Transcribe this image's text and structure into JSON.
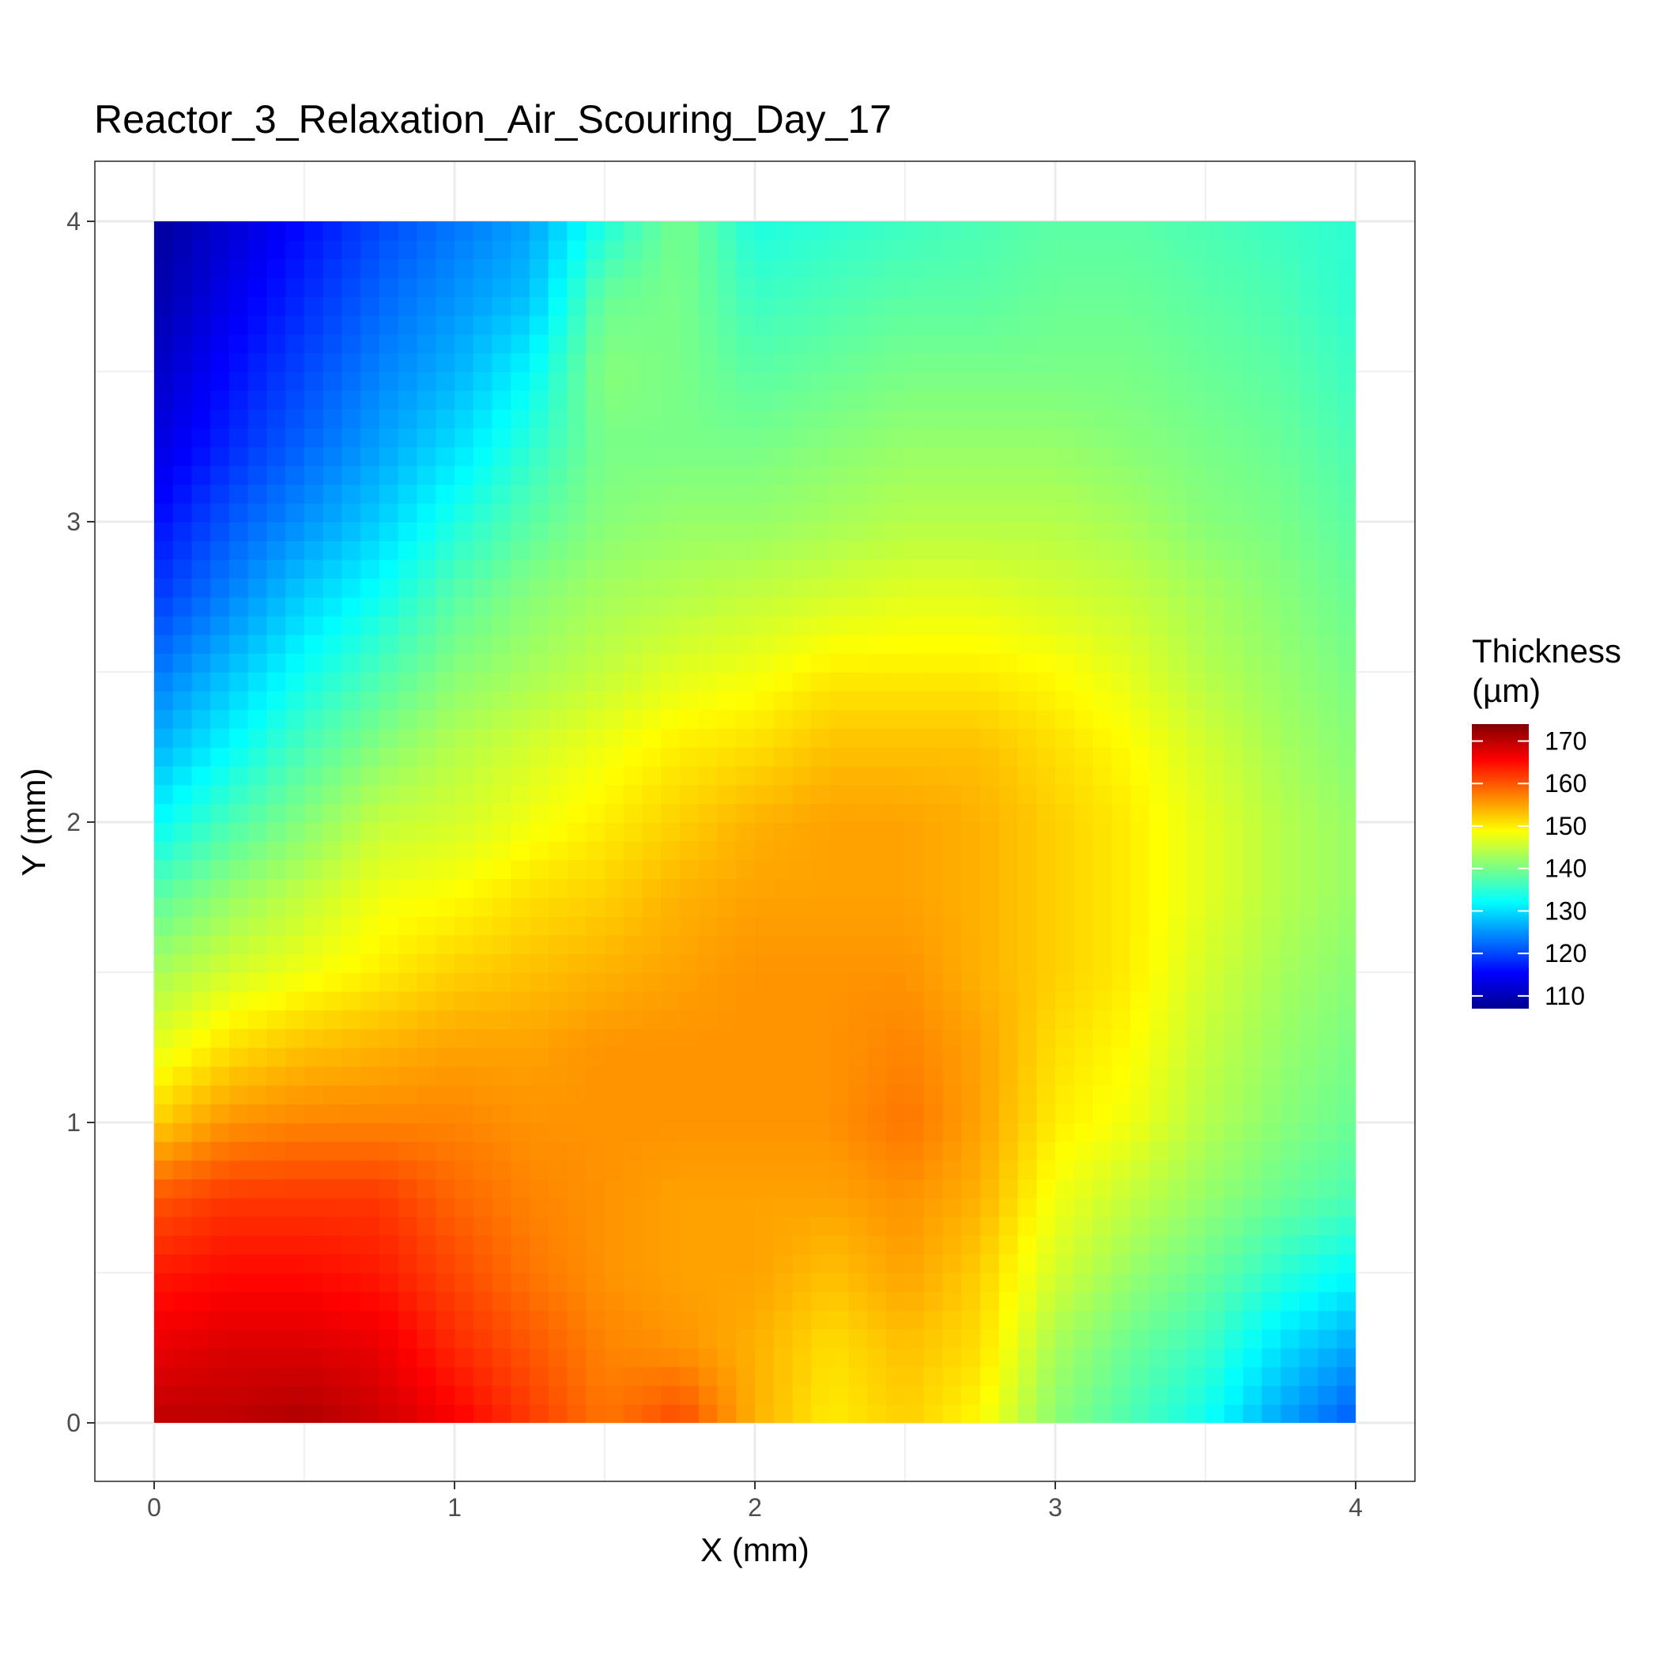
{
  "chart_data": {
    "type": "heatmap",
    "title": "Reactor_3_Relaxation_Air_Scouring_Day_17",
    "xlabel": "X (mm)",
    "ylabel": "Y (mm)",
    "xlim": [
      0,
      4
    ],
    "ylim": [
      0,
      4
    ],
    "x_ticks": [
      0,
      1,
      2,
      3,
      4
    ],
    "y_ticks": [
      0,
      1,
      2,
      3,
      4
    ],
    "grid": true,
    "legend": {
      "title_line1": "Thickness",
      "title_line2": "(µm)",
      "placement": "right",
      "ticks": [
        110,
        120,
        130,
        140,
        150,
        160,
        170
      ],
      "range": [
        107,
        174
      ],
      "colors": [
        "#00008F",
        "#0000FF",
        "#0080FF",
        "#00FFFF",
        "#80FF80",
        "#FFFF00",
        "#FF8000",
        "#FF0000",
        "#800000"
      ]
    },
    "grid_x": [
      0.0,
      0.25,
      0.5,
      0.75,
      1.0,
      1.25,
      1.5,
      1.75,
      2.0,
      2.25,
      2.5,
      2.75,
      3.0,
      3.25,
      3.5,
      3.75,
      4.0
    ],
    "grid_y": [
      0.0,
      0.25,
      0.5,
      0.75,
      1.0,
      1.25,
      1.5,
      1.75,
      2.0,
      2.25,
      2.5,
      2.75,
      3.0,
      3.25,
      3.5,
      3.75,
      4.0
    ],
    "z": [
      [
        170,
        170,
        171,
        169,
        166,
        162,
        158,
        161,
        154,
        150,
        152,
        149,
        141,
        137,
        133,
        126,
        121
      ],
      [
        167,
        168,
        168,
        167,
        163,
        160,
        157,
        156,
        154,
        151,
        153,
        151,
        143,
        139,
        136,
        130,
        126
      ],
      [
        164,
        165,
        165,
        164,
        161,
        158,
        156,
        155,
        155,
        153,
        155,
        152,
        146,
        142,
        139,
        135,
        132
      ],
      [
        160,
        162,
        162,
        162,
        159,
        157,
        156,
        155,
        155,
        155,
        156,
        154,
        148,
        145,
        142,
        139,
        137
      ],
      [
        152,
        156,
        157,
        157,
        157,
        156,
        156,
        156,
        156,
        156,
        158,
        155,
        150,
        148,
        144,
        141,
        139
      ],
      [
        147,
        151,
        153,
        154,
        155,
        155,
        156,
        156,
        156,
        156,
        157,
        155,
        151,
        149,
        145,
        142,
        140
      ],
      [
        143,
        146,
        148,
        150,
        152,
        153,
        154,
        155,
        156,
        156,
        156,
        154,
        152,
        150,
        146,
        143,
        141
      ],
      [
        138,
        142,
        145,
        148,
        149,
        151,
        152,
        154,
        155,
        155,
        155,
        154,
        152,
        150,
        147,
        144,
        142
      ],
      [
        132,
        137,
        141,
        145,
        146,
        148,
        150,
        152,
        154,
        155,
        155,
        154,
        152,
        150,
        147,
        144,
        142
      ],
      [
        127,
        132,
        137,
        141,
        144,
        146,
        148,
        150,
        151,
        153,
        153,
        153,
        151,
        149,
        146,
        143,
        141
      ],
      [
        123,
        128,
        133,
        137,
        141,
        143,
        145,
        147,
        148,
        150,
        150,
        150,
        149,
        147,
        144,
        142,
        140
      ],
      [
        119,
        124,
        129,
        133,
        138,
        141,
        143,
        144,
        145,
        146,
        147,
        147,
        146,
        145,
        143,
        141,
        139
      ],
      [
        116,
        121,
        125,
        129,
        134,
        138,
        141,
        142,
        142,
        143,
        144,
        144,
        144,
        143,
        141,
        140,
        138
      ],
      [
        113,
        118,
        122,
        126,
        130,
        135,
        140,
        140,
        140,
        141,
        142,
        142,
        142,
        141,
        140,
        139,
        137
      ],
      [
        111,
        116,
        120,
        124,
        127,
        132,
        141,
        140,
        138,
        139,
        140,
        140,
        140,
        140,
        139,
        138,
        136
      ],
      [
        109,
        114,
        118,
        122,
        125,
        128,
        139,
        140,
        136,
        137,
        138,
        138,
        139,
        139,
        138,
        137,
        135
      ],
      [
        108,
        112,
        116,
        120,
        123,
        126,
        134,
        140,
        134,
        135,
        136,
        137,
        138,
        138,
        137,
        136,
        135
      ]
    ]
  }
}
